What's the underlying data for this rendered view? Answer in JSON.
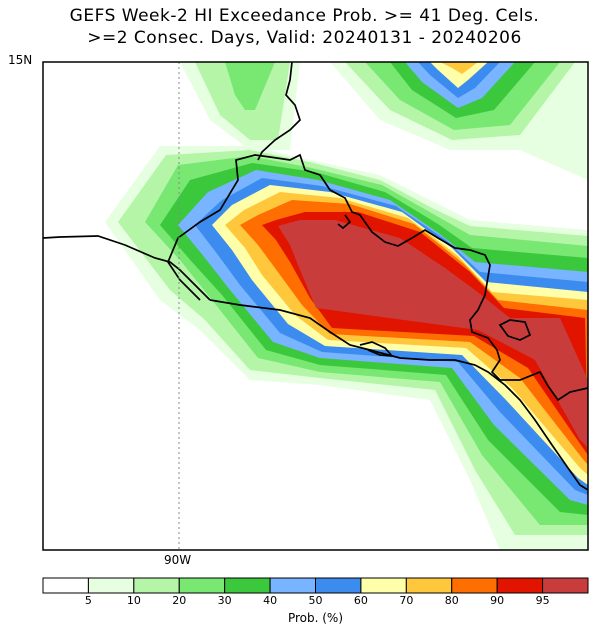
{
  "title": {
    "line1": "GEFS Week-2 HI Exceedance Prob. >= 41 Deg. Cels.",
    "line2": ">=2 Consec. Days, Valid: 20240131 - 20240206"
  },
  "axes": {
    "lat_label": "15N",
    "lon_label": "90W"
  },
  "legend": {
    "title": "Prob. (%)",
    "ticks": [
      "5",
      "10",
      "20",
      "30",
      "40",
      "50",
      "60",
      "70",
      "80",
      "90",
      "95"
    ],
    "colors": [
      "#ffffff",
      "#e6ffe0",
      "#b4f5a8",
      "#78e873",
      "#3cc83c",
      "#78b4ff",
      "#3c8cf0",
      "#ffffaa",
      "#ffc83c",
      "#ff6e00",
      "#e11400",
      "#c83c3c"
    ]
  },
  "map": {
    "bins_percent": [
      0,
      5,
      10,
      20,
      30,
      40,
      50,
      60,
      70,
      80,
      90,
      95,
      100
    ],
    "region": "Guatemala / El Salvador / Honduras Pacific coast",
    "gridline_lon": "90W"
  }
}
